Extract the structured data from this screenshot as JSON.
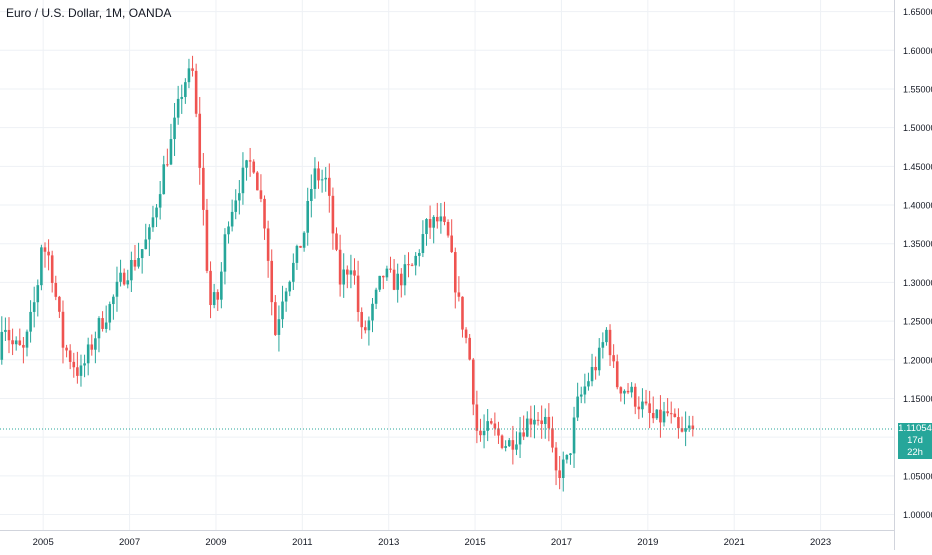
{
  "header": {
    "title": "Euro / U.S. Dollar, 1M, OANDA"
  },
  "colors": {
    "up": "#26a69a",
    "down": "#ef5350",
    "grid": "#eef1f5",
    "axis_text": "#131722",
    "price_line": "#26a69a",
    "axis_border": "#d1d4dc"
  },
  "last_price": {
    "label": "1.11054",
    "value": 1.11054,
    "countdown": "17d 22h"
  },
  "chart_data": {
    "type": "candlestick",
    "title": "Euro / U.S. Dollar, 1M, OANDA",
    "xlabel": "",
    "ylabel": "",
    "ylim": [
      0.98,
      1.665
    ],
    "xlim": [
      2004.0,
      2024.7
    ],
    "grid": true,
    "y_ticks": [
      "1.00000",
      "1.05000",
      "1.10000",
      "1.15000",
      "1.20000",
      "1.25000",
      "1.30000",
      "1.35000",
      "1.40000",
      "1.45000",
      "1.50000",
      "1.55000",
      "1.60000",
      "1.65000"
    ],
    "x_ticks": [
      "2005",
      "2007",
      "2009",
      "2011",
      "2013",
      "2015",
      "2017",
      "2019",
      "2021",
      "2023"
    ],
    "anchors": [
      [
        2004.0,
        1.2
      ],
      [
        2004.1,
        1.26
      ],
      [
        2004.3,
        1.22
      ],
      [
        2004.6,
        1.21
      ],
      [
        2004.9,
        1.29
      ],
      [
        2005.0,
        1.35
      ],
      [
        2005.2,
        1.33
      ],
      [
        2005.5,
        1.22
      ],
      [
        2005.9,
        1.18
      ],
      [
        2006.3,
        1.24
      ],
      [
        2006.6,
        1.27
      ],
      [
        2006.9,
        1.31
      ],
      [
        2007.2,
        1.33
      ],
      [
        2007.5,
        1.36
      ],
      [
        2007.8,
        1.44
      ],
      [
        2008.0,
        1.48
      ],
      [
        2008.3,
        1.56
      ],
      [
        2008.5,
        1.57
      ],
      [
        2008.7,
        1.43
      ],
      [
        2008.9,
        1.27
      ],
      [
        2009.1,
        1.28
      ],
      [
        2009.3,
        1.38
      ],
      [
        2009.6,
        1.43
      ],
      [
        2009.9,
        1.46
      ],
      [
        2010.2,
        1.37
      ],
      [
        2010.4,
        1.23
      ],
      [
        2010.6,
        1.29
      ],
      [
        2010.9,
        1.33
      ],
      [
        2011.1,
        1.37
      ],
      [
        2011.3,
        1.44
      ],
      [
        2011.6,
        1.43
      ],
      [
        2011.9,
        1.3
      ],
      [
        2012.2,
        1.33
      ],
      [
        2012.4,
        1.23
      ],
      [
        2012.6,
        1.25
      ],
      [
        2012.9,
        1.31
      ],
      [
        2013.2,
        1.3
      ],
      [
        2013.6,
        1.32
      ],
      [
        2013.9,
        1.37
      ],
      [
        2014.2,
        1.38
      ],
      [
        2014.4,
        1.36
      ],
      [
        2014.7,
        1.26
      ],
      [
        2014.9,
        1.21
      ],
      [
        2015.1,
        1.1
      ],
      [
        2015.4,
        1.11
      ],
      [
        2015.8,
        1.09
      ],
      [
        2016.1,
        1.11
      ],
      [
        2016.4,
        1.13
      ],
      [
        2016.7,
        1.12
      ],
      [
        2016.9,
        1.05
      ],
      [
        2017.2,
        1.07
      ],
      [
        2017.4,
        1.14
      ],
      [
        2017.7,
        1.18
      ],
      [
        2017.9,
        1.2
      ],
      [
        2018.1,
        1.24
      ],
      [
        2018.3,
        1.17
      ],
      [
        2018.6,
        1.16
      ],
      [
        2018.9,
        1.14
      ],
      [
        2019.2,
        1.12
      ],
      [
        2019.5,
        1.13
      ],
      [
        2019.8,
        1.1
      ],
      [
        2020.0,
        1.11
      ]
    ]
  }
}
